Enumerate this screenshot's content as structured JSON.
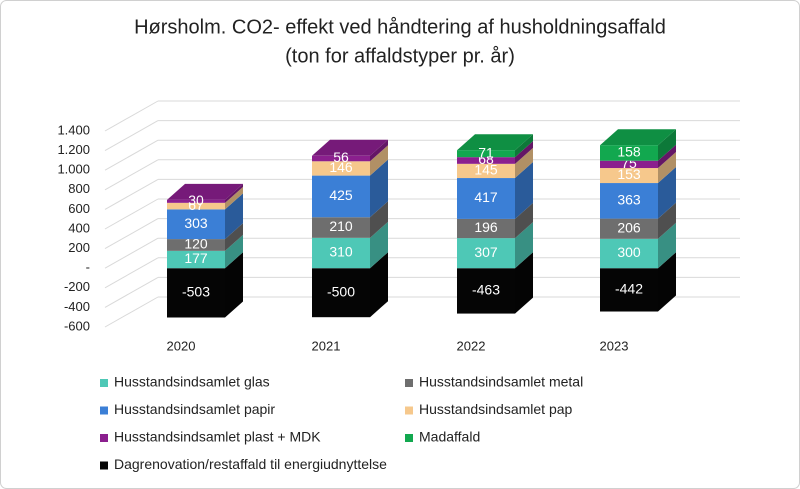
{
  "chart_data": {
    "type": "bar3d_stacked",
    "title": "Hørsholm. CO2- effekt ved håndtering af husholdningsaffald",
    "subtitle": "(ton for affaldstyper pr. år)",
    "categories": [
      "2020",
      "2021",
      "2022",
      "2023"
    ],
    "series": [
      {
        "name": "Husstandsindsamlet glas",
        "color": "#4ec8b6",
        "values": [
          177,
          310,
          307,
          300
        ]
      },
      {
        "name": "Husstandsindsamlet metal",
        "color": "#6e6e6e",
        "values": [
          120,
          210,
          196,
          206
        ]
      },
      {
        "name": "Husstandsindsamlet papir",
        "color": "#3b7fd6",
        "values": [
          303,
          425,
          417,
          363
        ]
      },
      {
        "name": "Husstandsindsamlet pap",
        "color": "#f6c88c",
        "values": [
          67,
          146,
          145,
          153
        ]
      },
      {
        "name": "Husstandsindsamlet plast + MDK",
        "color": "#8b1f8e",
        "values": [
          30,
          56,
          68,
          75
        ]
      },
      {
        "name": "Madaffald",
        "color": "#12a84f",
        "values": [
          null,
          null,
          71,
          158
        ]
      },
      {
        "name": "Dagrenovation/restaffald til energiudnyttelse",
        "color": "#050505",
        "values": [
          -503,
          -500,
          -463,
          -442
        ]
      }
    ],
    "ylim": [
      -600,
      1400
    ],
    "yticks": [
      {
        "value": -600,
        "label": "-600"
      },
      {
        "value": -400,
        "label": "-400"
      },
      {
        "value": -200,
        "label": "-200"
      },
      {
        "value": 0,
        "label": "-"
      },
      200,
      400,
      600,
      800,
      {
        "value": 1000,
        "label": "1.000"
      },
      {
        "value": 1200,
        "label": "1.200"
      },
      {
        "value": 1400,
        "label": "1.400"
      }
    ],
    "grid": true
  }
}
